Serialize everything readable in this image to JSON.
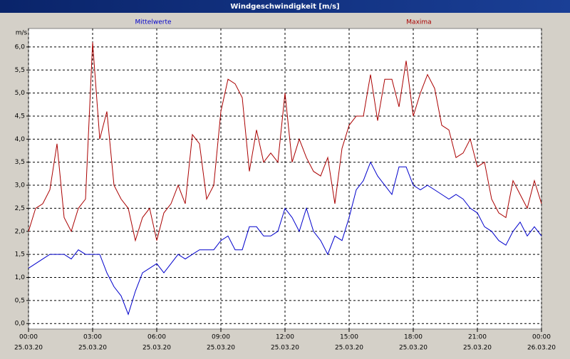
{
  "chart_data": {
    "type": "line",
    "title": "Windgeschwindigkeit [m/s]",
    "y_unit": "m/s",
    "x": [
      0,
      20,
      40,
      60,
      80,
      100,
      120,
      140,
      160,
      180,
      200,
      220,
      240,
      260,
      280,
      300,
      320,
      340,
      360,
      380,
      400,
      420,
      440,
      460,
      480,
      500,
      520,
      540,
      560,
      580,
      600,
      620,
      640,
      660,
      680,
      700,
      720,
      740,
      760,
      780,
      800,
      820,
      840,
      860,
      880,
      900,
      920,
      940,
      960,
      980,
      1000,
      1020,
      1040,
      1060,
      1080,
      1100,
      1120,
      1140,
      1160,
      1180,
      1200,
      1220,
      1240,
      1260,
      1280,
      1300,
      1320,
      1340,
      1360,
      1380,
      1400,
      1420,
      1440
    ],
    "series": [
      {
        "name": "Mittelwerte",
        "color": "#0000cc",
        "values": [
          1.2,
          1.3,
          1.4,
          1.5,
          1.5,
          1.5,
          1.4,
          1.6,
          1.5,
          1.5,
          1.5,
          1.1,
          0.8,
          0.6,
          0.2,
          0.7,
          1.1,
          1.2,
          1.3,
          1.1,
          1.3,
          1.5,
          1.4,
          1.5,
          1.6,
          1.6,
          1.6,
          1.8,
          1.9,
          1.6,
          1.6,
          2.1,
          2.1,
          1.9,
          1.9,
          2.0,
          2.5,
          2.3,
          2.0,
          2.5,
          2.0,
          1.8,
          1.5,
          1.9,
          1.8,
          2.3,
          2.9,
          3.1,
          3.5,
          3.2,
          3.0,
          2.8,
          3.4,
          3.4,
          3.0,
          2.9,
          3.0,
          2.9,
          2.8,
          2.7,
          2.8,
          2.7,
          2.5,
          2.4,
          2.1,
          2.0,
          1.8,
          1.7,
          2.0,
          2.2,
          1.9,
          2.1,
          1.9
        ]
      },
      {
        "name": "Maxima",
        "color": "#aa0000",
        "values": [
          2.0,
          2.5,
          2.6,
          2.9,
          3.9,
          2.3,
          2.0,
          2.5,
          2.7,
          6.1,
          4.0,
          4.6,
          3.0,
          2.7,
          2.5,
          1.8,
          2.3,
          2.5,
          1.8,
          2.4,
          2.6,
          3.0,
          2.6,
          4.1,
          3.9,
          2.7,
          3.0,
          4.6,
          5.3,
          5.2,
          4.9,
          3.3,
          4.2,
          3.5,
          3.7,
          3.5,
          5.0,
          3.5,
          4.0,
          3.6,
          3.3,
          3.2,
          3.6,
          2.6,
          3.8,
          4.3,
          4.5,
          4.5,
          5.4,
          4.4,
          5.3,
          5.3,
          4.7,
          5.7,
          4.5,
          5.0,
          5.4,
          5.1,
          4.3,
          4.2,
          3.6,
          3.7,
          4.0,
          3.4,
          3.5,
          2.7,
          2.4,
          2.3,
          3.1,
          2.8,
          2.5,
          3.1,
          2.6
        ]
      }
    ],
    "xlim": [
      0,
      1440
    ],
    "xticks": [
      {
        "value": 0,
        "label": "00:00",
        "date": "25.03.20"
      },
      {
        "value": 180,
        "label": "03:00",
        "date": "25.03.20"
      },
      {
        "value": 360,
        "label": "06:00",
        "date": "25.03.20"
      },
      {
        "value": 540,
        "label": "09:00",
        "date": "25.03.20"
      },
      {
        "value": 720,
        "label": "12:00",
        "date": "25.03.20"
      },
      {
        "value": 900,
        "label": "15:00",
        "date": "25.03.20"
      },
      {
        "value": 1080,
        "label": "18:00",
        "date": "25.03.20"
      },
      {
        "value": 1260,
        "label": "21:00",
        "date": "25.03.20"
      },
      {
        "value": 1440,
        "label": "00:00",
        "date": "26.03.20"
      }
    ],
    "ylim": [
      -0.12,
      6.4
    ],
    "yticks": [
      {
        "value": 0,
        "label": "0,0"
      },
      {
        "value": 0.5,
        "label": "0,5"
      },
      {
        "value": 1,
        "label": "1,0"
      },
      {
        "value": 1.5,
        "label": "1,5"
      },
      {
        "value": 2,
        "label": "2,0"
      },
      {
        "value": 2.5,
        "label": "2,5"
      },
      {
        "value": 3,
        "label": "3,0"
      },
      {
        "value": 3.5,
        "label": "3,5"
      },
      {
        "value": 4,
        "label": "4,0"
      },
      {
        "value": 4.5,
        "label": "4,5"
      },
      {
        "value": 5,
        "label": "5,0"
      },
      {
        "value": 5.5,
        "label": "5,5"
      },
      {
        "value": 6,
        "label": "6,0"
      }
    ],
    "grid": true
  }
}
